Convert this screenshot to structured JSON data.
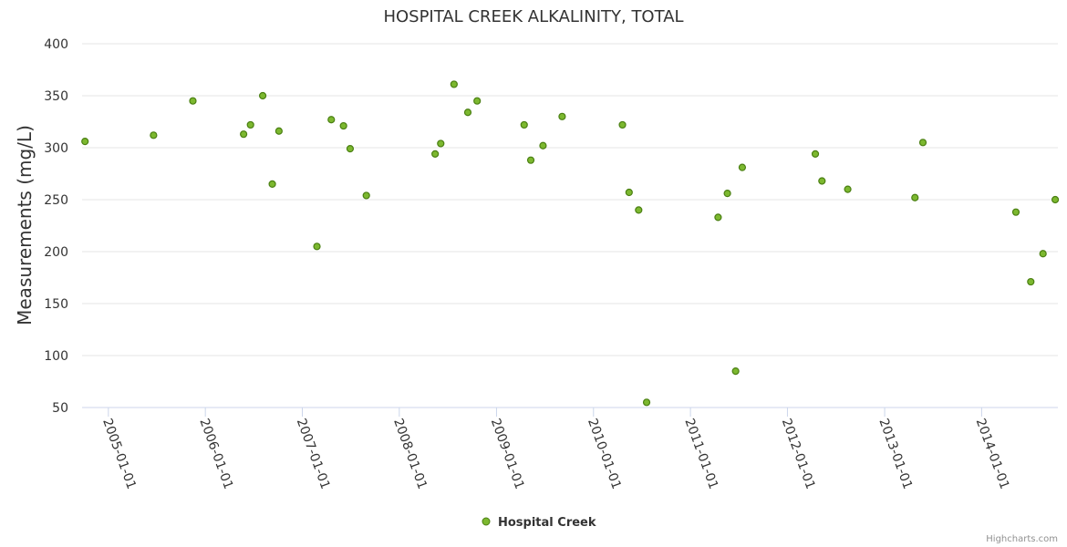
{
  "chart_data": {
    "type": "scatter",
    "title": "HOSPITAL CREEK ALKALINITY, TOTAL",
    "ylabel": "Measurements (mg/L)",
    "xlabel": "",
    "ylim": [
      50,
      400
    ],
    "yticks": [
      50,
      100,
      150,
      200,
      250,
      300,
      350,
      400
    ],
    "xticks": [
      "2005-01-01",
      "2006-01-01",
      "2007-01-01",
      "2008-01-01",
      "2009-01-01",
      "2010-01-01",
      "2011-01-01",
      "2012-01-01",
      "2013-01-01",
      "2014-01-01"
    ],
    "xlim": [
      "2004-09-24",
      "2014-10-15"
    ],
    "grid": "horizontal",
    "legend_position": "bottom-center",
    "series": [
      {
        "name": "Hospital Creek",
        "color": "#7cb82f",
        "stroke": "#4a7f12",
        "points": [
          {
            "x": "2004-10-05",
            "y": 306
          },
          {
            "x": "2005-06-20",
            "y": 312
          },
          {
            "x": "2005-11-15",
            "y": 345
          },
          {
            "x": "2006-05-25",
            "y": 313
          },
          {
            "x": "2006-06-20",
            "y": 322
          },
          {
            "x": "2006-08-05",
            "y": 350
          },
          {
            "x": "2006-09-10",
            "y": 265
          },
          {
            "x": "2006-10-05",
            "y": 316
          },
          {
            "x": "2007-02-25",
            "y": 205
          },
          {
            "x": "2007-04-20",
            "y": 327
          },
          {
            "x": "2007-06-05",
            "y": 321
          },
          {
            "x": "2007-06-30",
            "y": 299
          },
          {
            "x": "2007-08-30",
            "y": 254
          },
          {
            "x": "2008-05-15",
            "y": 294
          },
          {
            "x": "2008-06-05",
            "y": 304
          },
          {
            "x": "2008-07-25",
            "y": 361
          },
          {
            "x": "2008-09-15",
            "y": 334
          },
          {
            "x": "2008-10-20",
            "y": 345
          },
          {
            "x": "2009-04-15",
            "y": 322
          },
          {
            "x": "2009-05-10",
            "y": 288
          },
          {
            "x": "2009-06-25",
            "y": 302
          },
          {
            "x": "2009-09-05",
            "y": 330
          },
          {
            "x": "2010-04-20",
            "y": 322
          },
          {
            "x": "2010-05-15",
            "y": 257
          },
          {
            "x": "2010-06-20",
            "y": 240
          },
          {
            "x": "2010-07-20",
            "y": 55
          },
          {
            "x": "2011-04-15",
            "y": 233
          },
          {
            "x": "2011-05-20",
            "y": 256
          },
          {
            "x": "2011-06-20",
            "y": 85
          },
          {
            "x": "2011-07-15",
            "y": 281
          },
          {
            "x": "2012-04-15",
            "y": 294
          },
          {
            "x": "2012-05-10",
            "y": 268
          },
          {
            "x": "2012-08-15",
            "y": 260
          },
          {
            "x": "2013-04-25",
            "y": 252
          },
          {
            "x": "2013-05-25",
            "y": 305
          },
          {
            "x": "2014-05-10",
            "y": 238
          },
          {
            "x": "2014-07-05",
            "y": 171
          },
          {
            "x": "2014-08-20",
            "y": 198
          },
          {
            "x": "2014-10-05",
            "y": 250
          }
        ]
      }
    ]
  },
  "credits": "Highcharts.com"
}
